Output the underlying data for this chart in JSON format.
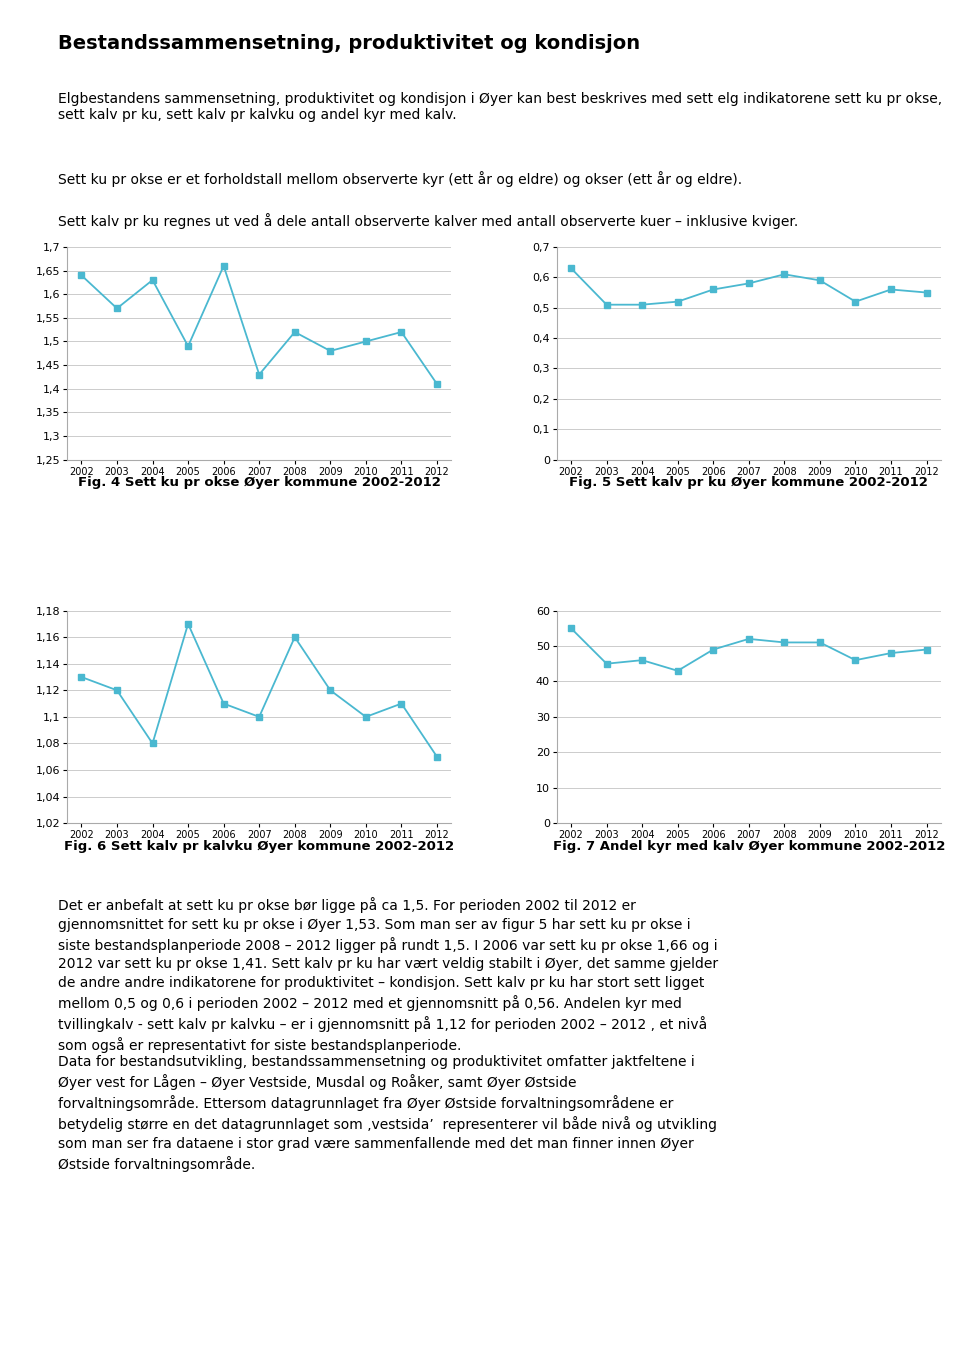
{
  "years": [
    2002,
    2003,
    2004,
    2005,
    2006,
    2007,
    2008,
    2009,
    2010,
    2011,
    2012
  ],
  "fig4_values": [
    1.64,
    1.57,
    1.63,
    1.49,
    1.66,
    1.43,
    1.52,
    1.48,
    1.5,
    1.52,
    1.41
  ],
  "fig4_title": "Fig. 4 Sett ku pr okse Øyer kommune 2002-2012",
  "fig4_ylim": [
    1.25,
    1.7
  ],
  "fig4_yticks": [
    1.25,
    1.3,
    1.35,
    1.4,
    1.45,
    1.5,
    1.55,
    1.6,
    1.65,
    1.7
  ],
  "fig5_values": [
    0.63,
    0.51,
    0.51,
    0.52,
    0.56,
    0.58,
    0.61,
    0.59,
    0.52,
    0.56,
    0.55
  ],
  "fig5_title": "Fig. 5 Sett kalv pr ku Øyer kommune 2002-2012",
  "fig5_ylim": [
    0.0,
    0.7
  ],
  "fig5_yticks": [
    0.0,
    0.1,
    0.2,
    0.3,
    0.4,
    0.5,
    0.6,
    0.7
  ],
  "fig6_values": [
    1.13,
    1.12,
    1.08,
    1.17,
    1.11,
    1.1,
    1.16,
    1.12,
    1.1,
    1.11,
    1.07
  ],
  "fig6_title": "Fig. 6 Sett kalv pr kalvku Øyer kommune 2002-2012",
  "fig6_ylim": [
    1.02,
    1.18
  ],
  "fig6_yticks": [
    1.02,
    1.04,
    1.06,
    1.08,
    1.1,
    1.12,
    1.14,
    1.16,
    1.18
  ],
  "fig7_values": [
    55,
    45,
    46,
    43,
    49,
    52,
    51,
    51,
    46,
    48,
    49
  ],
  "fig7_title": "Fig. 7 Andel kyr med kalv Øyer kommune 2002-2012",
  "fig7_ylim": [
    0,
    60
  ],
  "fig7_yticks": [
    0,
    10,
    20,
    30,
    40,
    50,
    60
  ],
  "line_color": "#4ab8d0",
  "marker": "s",
  "markersize": 4,
  "linewidth": 1.3,
  "page_title": "Bestandssammensetning, produktivitet og kondisjon",
  "intro_text": "Elgbestandens sammensetning, produktivitet og kondisjon i Øyer kan best beskrives med sett\nelg indikatorene sett ku pr okse, sett kalv pr ku, sett kalv pr kalvku og andel kyr med kalv.",
  "text1": "Sett ku pr okse er et forholdstall mellom observerte kyr (ett år og eldre) og okser (ett år og\neldre).",
  "text2": "Sett kalv pr ku regnes ut ved å dele antall observerte kalver med antall observerte kuer\n– inklusive kviger.",
  "body_text1_lines": [
    "Det er anbefalt at sett ku pr okse bør ligge på ca 1,5. For perioden 2002 til 2012 er",
    "gjennomsnittet for sett ku pr okse i Øyer 1,53. Som man ser av figur 5 har sett ku pr okse i",
    "siste bestandsplanperiode 2008 – 2012 ligger på rundt 1,5. I 2006 var sett ku pr okse 1,66 og i",
    "2012 var sett ku pr okse 1,41. Sett kalv pr ku har vært veldig stabilt i Øyer, det samme gjelder",
    "de andre andre indikatorene for produktivitet – kondisjon. Sett kalv pr ku har stort sett ligget",
    "mellom 0,5 og 0,6 i perioden 2002 – 2012 med et gjennomsnitt på 0,56. Andelen kyr med",
    "tvillingkalv - sett kalv pr kalvku – er i gjennomsnitt på 1,12 for perioden 2002 – 2012 , et nivå",
    "som også er representativt for siste bestandsplanperiode."
  ],
  "body_text2_lines": [
    "Data for bestandsutvikling, bestandssammensetning og produktivitet omfatter jaktfeltene i",
    "Øyer vest for Lågen – Øyer Vestside, Musdal og Roåker, samt Øyer Østside",
    "forvaltningsområde. Ettersom datagrunnlaget fra Øyer Østside forvaltningsområdene er",
    "betydelig større en det datagrunnlaget som ‚vestsida’  representerer vil både nivå og utvikling",
    "som man ser fra dataene i stor grad være sammenfallende med det man finner innen Øyer",
    "Østside forvaltningsområde."
  ]
}
